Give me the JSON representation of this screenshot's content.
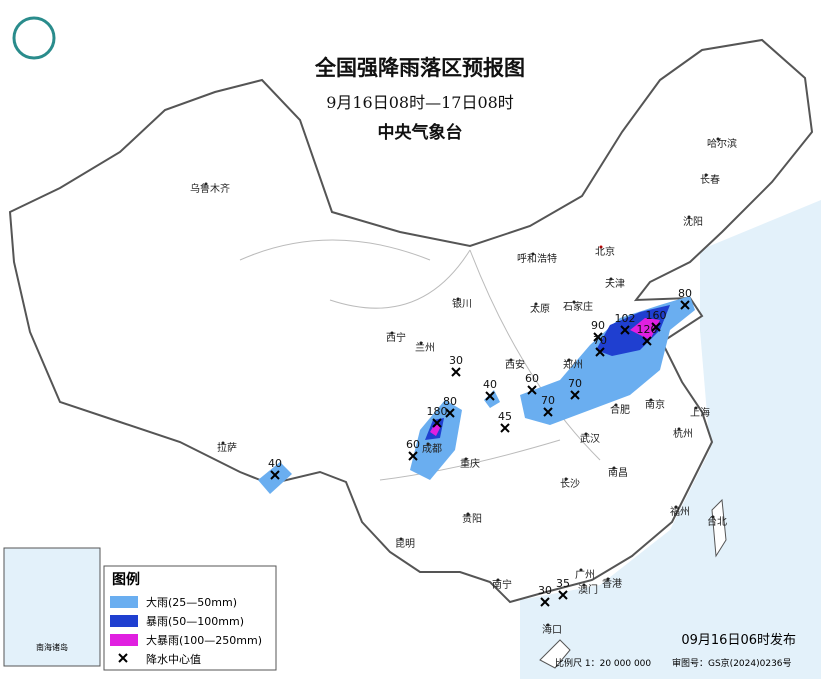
{
  "header": {
    "title": "全国强降雨落区预报图",
    "subtitle": "9月16日08时—17日08时",
    "agency": "中央气象台"
  },
  "cities": [
    "乌鲁木齐",
    "哈尔滨",
    "长春",
    "沈阳",
    "北京",
    "天津",
    "呼和浩特",
    "石家庄",
    "太原",
    "银川",
    "西宁",
    "兰州",
    "西安",
    "郑州",
    "合肥",
    "南京",
    "上海",
    "杭州",
    "武汉",
    "成都",
    "重庆",
    "拉萨",
    "长沙",
    "南昌",
    "福州",
    "台北",
    "贵阳",
    "昆明",
    "南宁",
    "广州",
    "香港",
    "澳门",
    "海口"
  ],
  "rain_centers": [
    30,
    40,
    45,
    60,
    70,
    70,
    80,
    180,
    60,
    40,
    90,
    70,
    102,
    120,
    160,
    80,
    30,
    35
  ],
  "legend": {
    "title": "图例",
    "items": [
      "大雨(25—50mm)",
      "暴雨(50—100mm)",
      "大暴雨(100—250mm)",
      "降水中心值"
    ]
  },
  "inset": {
    "label": "南海诸岛"
  },
  "footer": {
    "issued": "09月16日06时发布",
    "scale": "比例尺 1：20 000 000",
    "review": "审图号：GS京(2024)0236号"
  }
}
